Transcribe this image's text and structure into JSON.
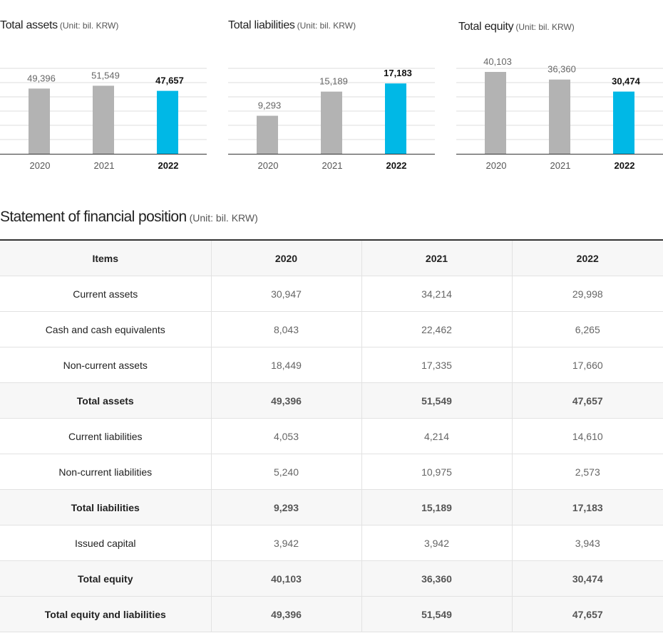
{
  "chart_data": [
    {
      "type": "bar",
      "title": "Total assets",
      "unit": "(Unit: bil. KRW)",
      "categories": [
        "2020",
        "2021",
        "2022"
      ],
      "values": [
        49396,
        51549,
        47657
      ],
      "value_labels": [
        "49,396",
        "51,549",
        "47,657"
      ],
      "highlight_index": 2,
      "ylim": [
        0,
        62000
      ],
      "grid": true,
      "colors": {
        "bar": "#b3b3b3",
        "highlight": "#00b8e6"
      }
    },
    {
      "type": "bar",
      "title": "Total liabilities",
      "unit": "(Unit: bil. KRW)",
      "categories": [
        "2020",
        "2021",
        "2022"
      ],
      "values": [
        9293,
        15189,
        17183
      ],
      "value_labels": [
        "9,293",
        "15,189",
        "17,183"
      ],
      "highlight_index": 2,
      "ylim": [
        0,
        20000
      ],
      "grid": true,
      "colors": {
        "bar": "#b3b3b3",
        "highlight": "#00b8e6"
      }
    },
    {
      "type": "bar",
      "title": "Total equity",
      "unit": "(Unit: bil. KRW)",
      "categories": [
        "2020",
        "2021",
        "2022"
      ],
      "values": [
        40103,
        36360,
        30474
      ],
      "value_labels": [
        "40,103",
        "36,360",
        "30,474"
      ],
      "highlight_index": 2,
      "ylim": [
        0,
        40103
      ],
      "grid": true,
      "colors": {
        "bar": "#b3b3b3",
        "highlight": "#00b8e6"
      }
    }
  ],
  "table": {
    "title": "Statement of financial position",
    "unit": "(Unit: bil. KRW)",
    "headers": [
      "Items",
      "2020",
      "2021",
      "2022"
    ],
    "rows": [
      {
        "label": "Current assets",
        "values": [
          "30,947",
          "34,214",
          "29,998"
        ],
        "total": false
      },
      {
        "label": "Cash and cash equivalents",
        "values": [
          "8,043",
          "22,462",
          "6,265"
        ],
        "total": false
      },
      {
        "label": "Non-current assets",
        "values": [
          "18,449",
          "17,335",
          "17,660"
        ],
        "total": false
      },
      {
        "label": "Total assets",
        "values": [
          "49,396",
          "51,549",
          "47,657"
        ],
        "total": true
      },
      {
        "label": "Current liabilities",
        "values": [
          "4,053",
          "4,214",
          "14,610"
        ],
        "total": false
      },
      {
        "label": "Non-current liabilities",
        "values": [
          "5,240",
          "10,975",
          "2,573"
        ],
        "total": false
      },
      {
        "label": "Total liabilities",
        "values": [
          "9,293",
          "15,189",
          "17,183"
        ],
        "total": true
      },
      {
        "label": "Issued capital",
        "values": [
          "3,942",
          "3,942",
          "3,943"
        ],
        "total": false
      },
      {
        "label": "Total equity",
        "values": [
          "40,103",
          "36,360",
          "30,474"
        ],
        "total": true
      },
      {
        "label": "Total equity and liabilities",
        "values": [
          "49,396",
          "51,549",
          "47,657"
        ],
        "total": true
      }
    ]
  }
}
